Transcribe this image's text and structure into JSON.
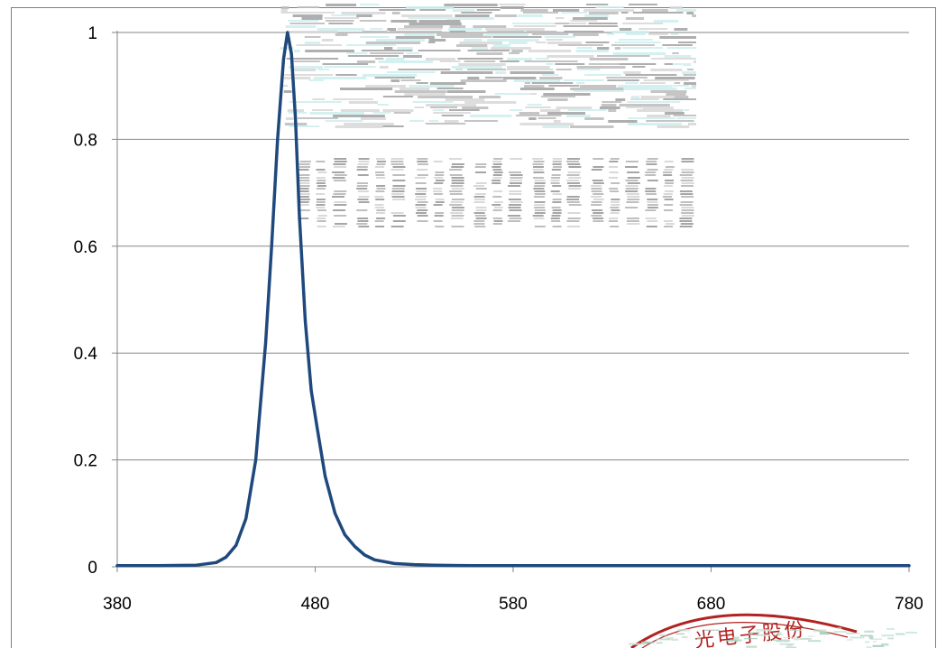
{
  "chart_data": {
    "type": "line",
    "title": "",
    "xlabel": "",
    "ylabel": "",
    "xlim": [
      380,
      780
    ],
    "ylim": [
      0,
      1
    ],
    "x_ticks": [
      380,
      480,
      580,
      680,
      780
    ],
    "y_ticks": [
      0,
      0.2,
      0.4,
      0.6,
      0.8,
      1
    ],
    "x_tick_labels": [
      "380",
      "480",
      "580",
      "680",
      "780"
    ],
    "y_tick_labels": [
      "0",
      "0.2",
      "0.4",
      "0.6",
      "0.8",
      "1"
    ],
    "grid": "horizontal",
    "legend": "none",
    "series": [
      {
        "color": "#1f497d",
        "x": [
          380,
          400,
          420,
          430,
          435,
          440,
          445,
          450,
          455,
          458,
          461,
          464,
          466,
          468,
          470,
          472,
          475,
          478,
          481,
          485,
          490,
          495,
          500,
          505,
          510,
          520,
          530,
          540,
          560,
          600,
          680,
          780
        ],
        "y": [
          0.002,
          0.002,
          0.003,
          0.008,
          0.018,
          0.04,
          0.09,
          0.2,
          0.42,
          0.6,
          0.8,
          0.95,
          1.0,
          0.96,
          0.84,
          0.66,
          0.46,
          0.33,
          0.26,
          0.17,
          0.1,
          0.06,
          0.038,
          0.022,
          0.013,
          0.006,
          0.004,
          0.003,
          0.002,
          0.002,
          0.002,
          0.002
        ]
      }
    ]
  },
  "watermark": {
    "colors": [
      "#a6a6a6",
      "#bfbfbf",
      "#d9d9d9",
      "#cfeeee"
    ]
  },
  "stamp": {
    "text": "光电子股份",
    "color": "#b22222"
  }
}
